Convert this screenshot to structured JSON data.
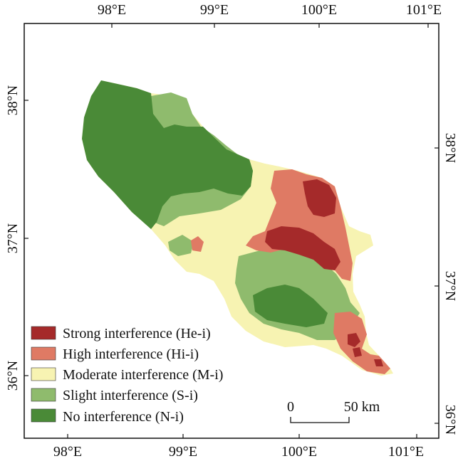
{
  "map": {
    "top_lon_ticks": [
      "98°E",
      "99°E",
      "100°E",
      "101°E"
    ],
    "bottom_lon_ticks": [
      "98°E",
      "99°E",
      "100°E",
      "101°E"
    ],
    "left_lat_ticks": [
      "38°N",
      "37°N",
      "36°N"
    ],
    "right_lat_ticks": [
      "38°N",
      "37°N",
      "36°N"
    ]
  },
  "legend": {
    "items": [
      {
        "label": "Strong interference (He-i)",
        "color": "#a52a2a"
      },
      {
        "label": "High interference (Hi-i)",
        "color": "#df7a64"
      },
      {
        "label": "Moderate interference (M-i)",
        "color": "#f7f3b2"
      },
      {
        "label": "Slight interference (S-i)",
        "color": "#8fbb6d"
      },
      {
        "label": "No interference (N-i)",
        "color": "#4a8a37"
      }
    ]
  },
  "scale_bar": {
    "start_label": "0",
    "end_label": "50 km"
  }
}
